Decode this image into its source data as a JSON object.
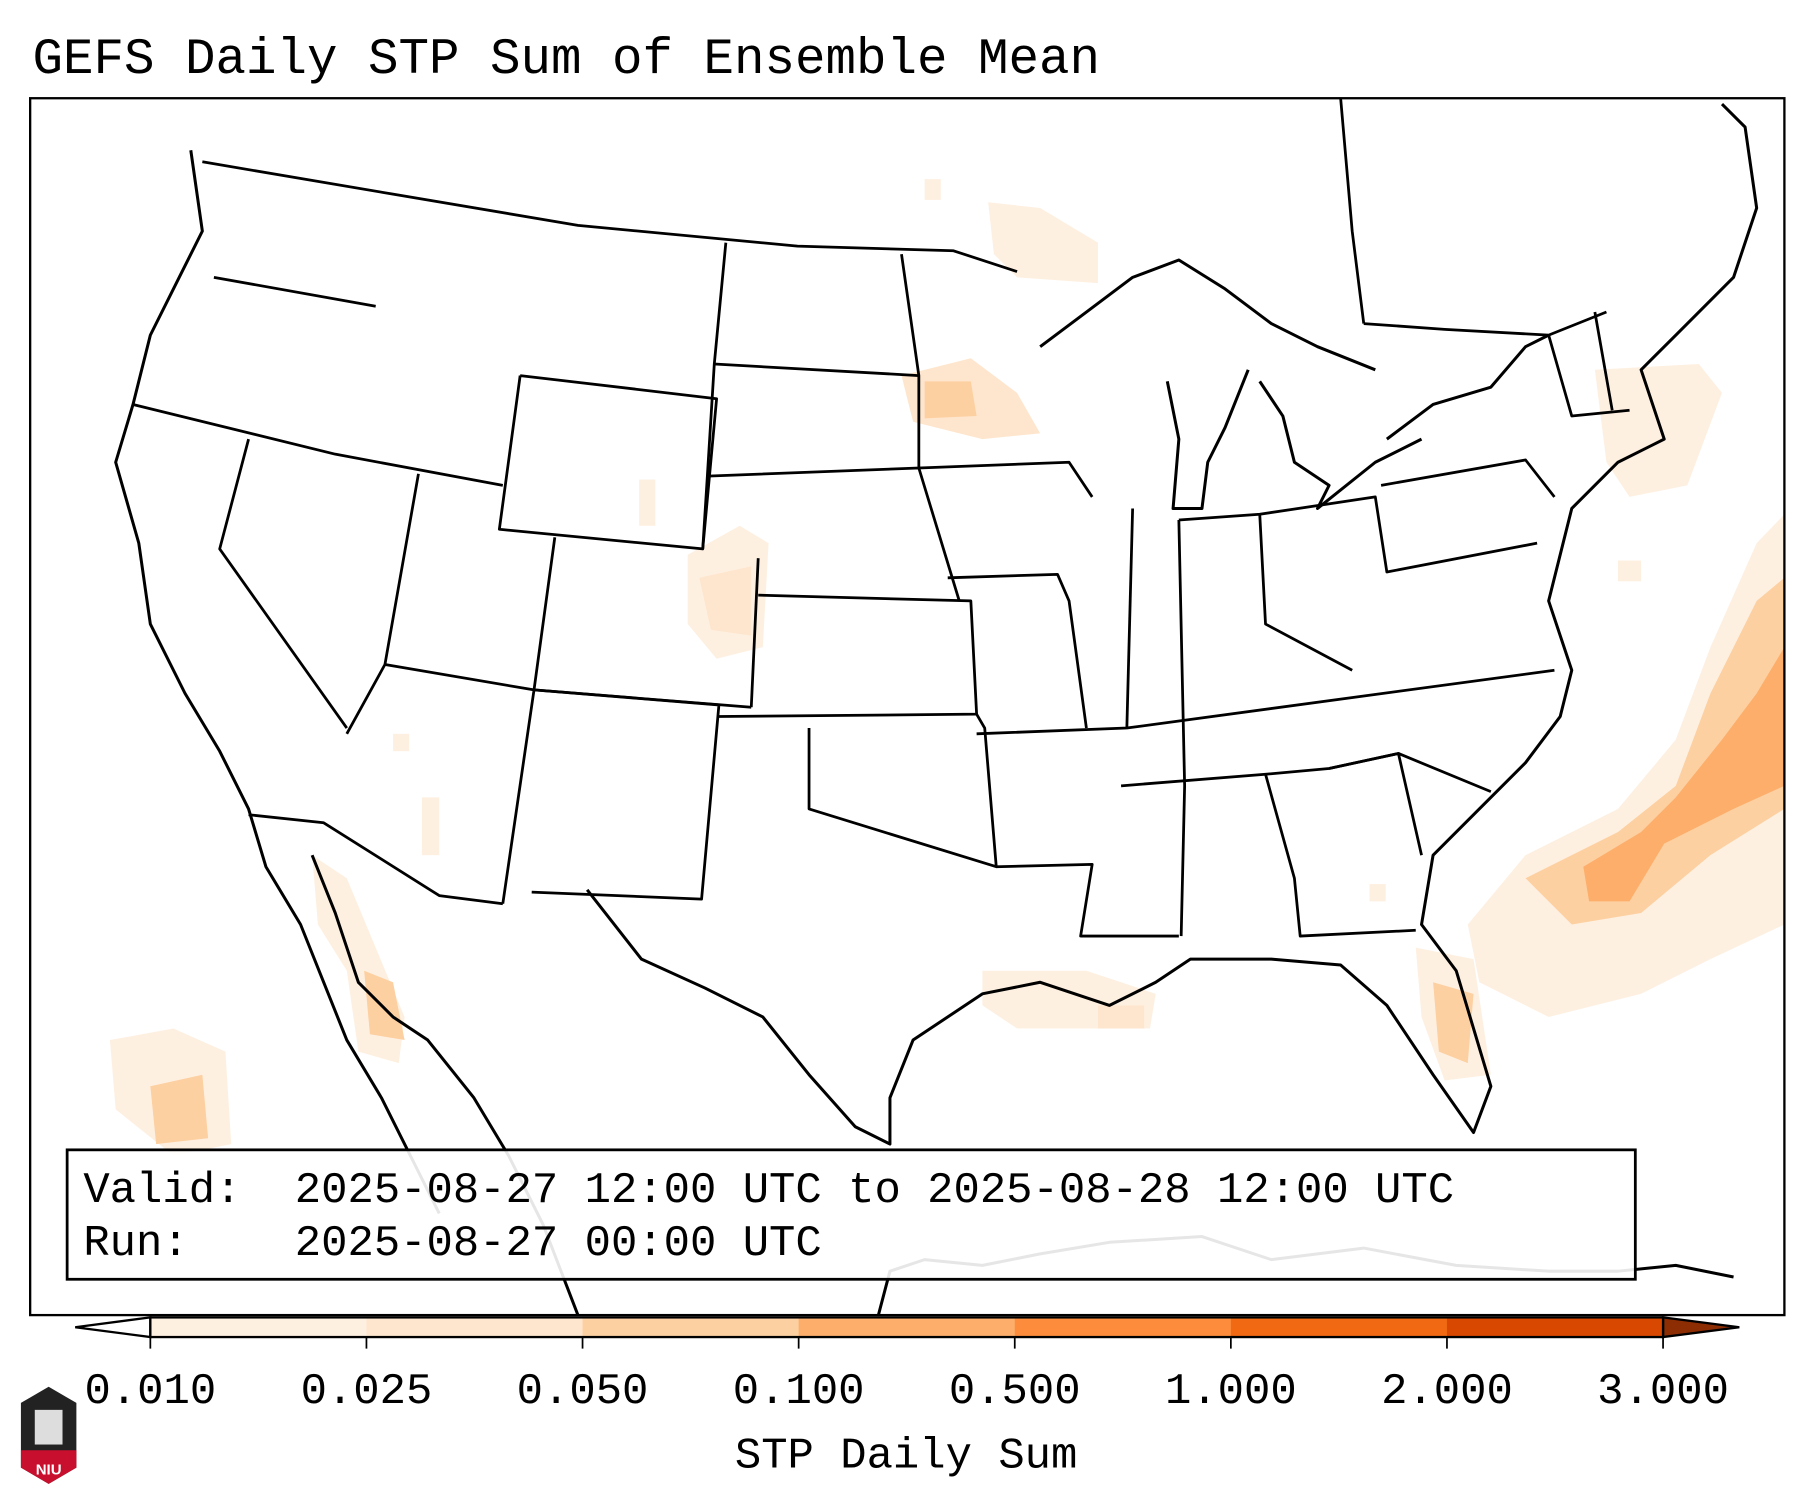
{
  "title": "GEFS Daily STP Sum of Ensemble Mean",
  "info_box": {
    "valid_label": "Valid:",
    "valid_value": "2025-08-27 12:00 UTC to 2025-08-28 12:00 UTC",
    "run_label": "Run:",
    "run_value": "2025-08-27 00:00 UTC"
  },
  "colorbar": {
    "label": "STP Daily Sum",
    "ticks": [
      "0.010",
      "0.025",
      "0.050",
      "0.100",
      "0.500",
      "1.000",
      "2.000",
      "3.000"
    ],
    "colors": [
      "#fef0e1",
      "#fee6ce",
      "#fdd0a2",
      "#fdae6b",
      "#fd8d3c",
      "#f16913",
      "#d94801"
    ],
    "under_color": "#ffffff",
    "over_color": "#8c2d04"
  },
  "logo": {
    "text": "NIU"
  }
}
